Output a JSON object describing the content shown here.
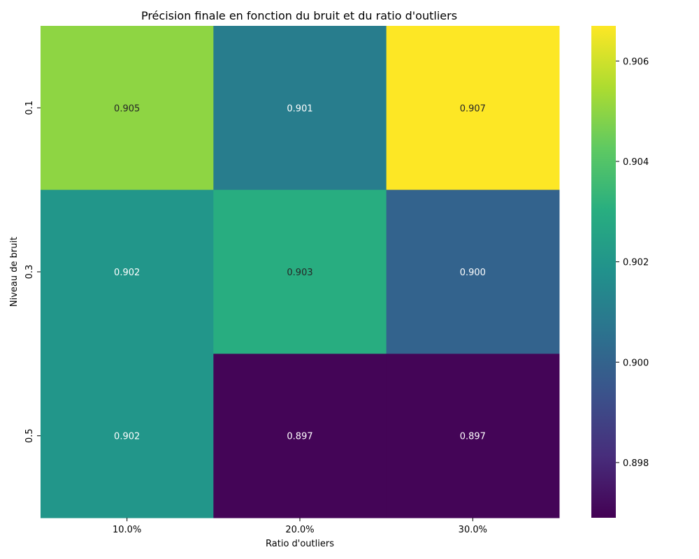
{
  "chart_data": {
    "type": "heatmap",
    "title": "Précision finale en fonction du bruit et du ratio d'outliers",
    "xlabel": "Ratio d'outliers",
    "ylabel": "Niveau de bruit",
    "x_categories": [
      "10.0%",
      "20.0%",
      "30.0%"
    ],
    "y_categories": [
      "0.1",
      "0.3",
      "0.5"
    ],
    "values": [
      [
        0.905,
        0.901,
        0.907
      ],
      [
        0.902,
        0.903,
        0.9
      ],
      [
        0.902,
        0.897,
        0.897
      ]
    ],
    "cell_labels": [
      [
        "0.905",
        "0.901",
        "0.907"
      ],
      [
        "0.902",
        "0.903",
        "0.900"
      ],
      [
        "0.902",
        "0.897",
        "0.897"
      ]
    ],
    "colormap": "viridis",
    "colorbar": {
      "vmin": 0.8969,
      "vmax": 0.9067,
      "ticks": [
        0.898,
        0.9,
        0.902,
        0.904,
        0.906
      ],
      "tick_labels": [
        "0.898",
        "0.900",
        "0.902",
        "0.904",
        "0.906"
      ]
    }
  }
}
